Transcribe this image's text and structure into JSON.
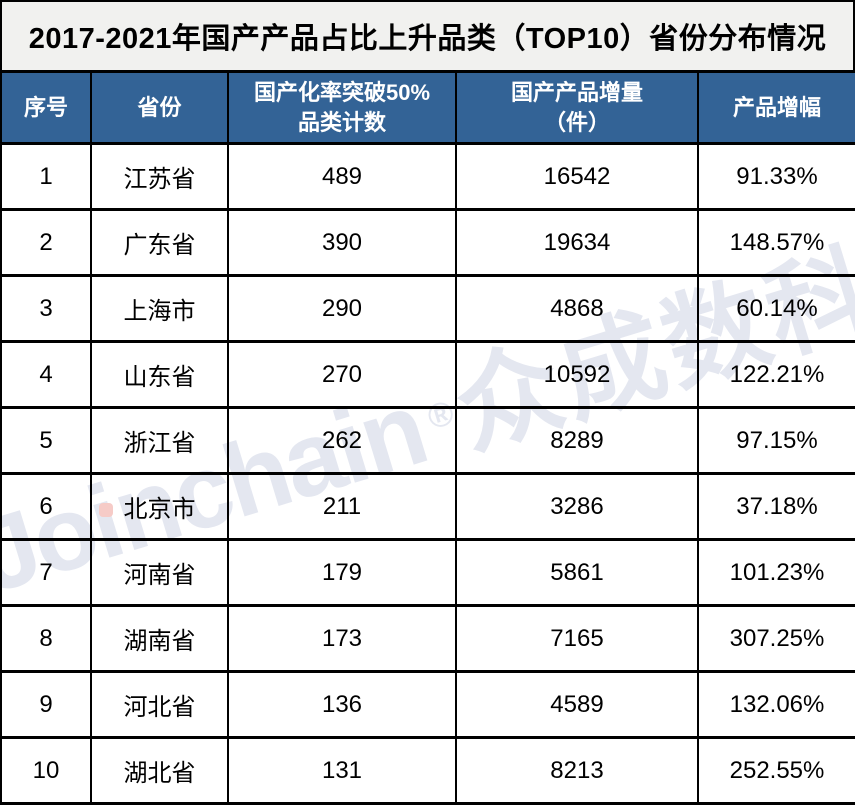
{
  "title": "2017-2021年国产产品占比上升品类（TOP10）省份分布情况",
  "watermark": {
    "latin": "Joinchain",
    "registered_mark": "®",
    "cjk": "众成数科"
  },
  "colors": {
    "header_bg": "#336396",
    "title_bg": "#f1f1ef",
    "border": "#000000",
    "watermark_text": "#e4e7f0",
    "watermark_dot": "#f6cbc7"
  },
  "table": {
    "header": {
      "index": "序号",
      "province": "省份",
      "count_line1": "国产化率突破50%",
      "count_line2": "品类计数",
      "increase_line1": "国产产品增量",
      "increase_line2": "（件）",
      "growth": "产品增幅"
    },
    "rows": [
      {
        "index": "1",
        "province": "江苏省",
        "count": "489",
        "increase": "16542",
        "growth": "91.33%"
      },
      {
        "index": "2",
        "province": "广东省",
        "count": "390",
        "increase": "19634",
        "growth": "148.57%"
      },
      {
        "index": "3",
        "province": "上海市",
        "count": "290",
        "increase": "4868",
        "growth": "60.14%"
      },
      {
        "index": "4",
        "province": "山东省",
        "count": "270",
        "increase": "10592",
        "growth": "122.21%"
      },
      {
        "index": "5",
        "province": "浙江省",
        "count": "262",
        "increase": "8289",
        "growth": "97.15%"
      },
      {
        "index": "6",
        "province": "北京市",
        "count": "211",
        "increase": "3286",
        "growth": "37.18%"
      },
      {
        "index": "7",
        "province": "河南省",
        "count": "179",
        "increase": "5861",
        "growth": "101.23%"
      },
      {
        "index": "8",
        "province": "湖南省",
        "count": "173",
        "increase": "7165",
        "growth": "307.25%"
      },
      {
        "index": "9",
        "province": "河北省",
        "count": "136",
        "increase": "4589",
        "growth": "132.06%"
      },
      {
        "index": "10",
        "province": "湖北省",
        "count": "131",
        "increase": "8213",
        "growth": "252.55%"
      }
    ]
  },
  "chart_data": {
    "type": "table",
    "title": "2017-2021年国产产品占比上升品类（TOP10）省份分布情况",
    "columns": [
      "序号",
      "省份",
      "国产化率突破50%品类计数",
      "国产产品增量（件）",
      "产品增幅"
    ],
    "rows": [
      [
        1,
        "江苏省",
        489,
        16542,
        "91.33%"
      ],
      [
        2,
        "广东省",
        390,
        19634,
        "148.57%"
      ],
      [
        3,
        "上海市",
        290,
        4868,
        "60.14%"
      ],
      [
        4,
        "山东省",
        270,
        10592,
        "122.21%"
      ],
      [
        5,
        "浙江省",
        262,
        8289,
        "97.15%"
      ],
      [
        6,
        "北京市",
        211,
        3286,
        "37.18%"
      ],
      [
        7,
        "河南省",
        179,
        5861,
        "101.23%"
      ],
      [
        8,
        "湖南省",
        173,
        7165,
        "307.25%"
      ],
      [
        9,
        "河北省",
        136,
        4589,
        "132.06%"
      ],
      [
        10,
        "湖北省",
        131,
        8213,
        "252.55%"
      ]
    ]
  }
}
